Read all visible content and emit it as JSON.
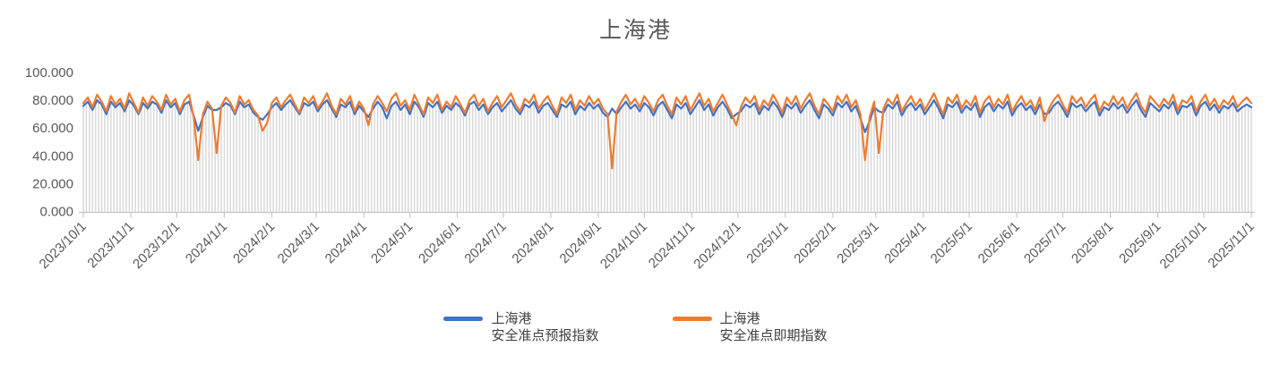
{
  "chart_data": {
    "type": "line",
    "title": "上海港",
    "legend_position": "bottom",
    "grid": "none",
    "sample_step_days": 3,
    "y_axis": {
      "min": 0,
      "max": 100,
      "tick_values": [
        0,
        20,
        40,
        60,
        80,
        100
      ],
      "tick_labels": [
        "0.000",
        "20.000",
        "40.000",
        "60.000",
        "80.000",
        "100.000"
      ]
    },
    "x_axis": {
      "tick_labels": [
        "2023/10/1",
        "2023/11/1",
        "2023/12/1",
        "2024/1/1",
        "2024/2/1",
        "2024/3/1",
        "2024/4/1",
        "2024/5/1",
        "2024/6/1",
        "2024/7/1",
        "2024/8/1",
        "2024/9/1",
        "2024/10/1",
        "2024/11/1",
        "2024/12/1",
        "2025/1/1",
        "2025/2/1",
        "2025/3/1",
        "2025/4/1",
        "2025/5/1",
        "2025/6/1",
        "2025/7/1",
        "2025/8/1",
        "2025/9/1",
        "2025/10/1",
        "2025/11/1"
      ],
      "tick_days": [
        0,
        31,
        61,
        92,
        123,
        152,
        183,
        213,
        244,
        274,
        305,
        336,
        366,
        397,
        427,
        458,
        489,
        517,
        548,
        578,
        609,
        639,
        670,
        701,
        731,
        762
      ],
      "total_days": 762
    },
    "series": [
      {
        "name_line1": "上海港",
        "name_line2": "安全准点预报指数",
        "color": "#4472C4",
        "values": [
          76,
          79,
          73,
          80,
          77,
          70,
          79,
          75,
          78,
          72,
          80,
          76,
          70,
          78,
          74,
          79,
          77,
          71,
          80,
          75,
          78,
          70,
          77,
          79,
          69,
          58,
          68,
          76,
          73,
          73,
          75,
          78,
          76,
          70,
          79,
          75,
          77,
          71,
          68,
          66,
          70,
          75,
          78,
          73,
          77,
          80,
          75,
          70,
          78,
          76,
          79,
          72,
          77,
          80,
          74,
          68,
          77,
          75,
          79,
          70,
          76,
          72,
          68,
          74,
          79,
          75,
          67,
          76,
          79,
          73,
          77,
          70,
          79,
          75,
          68,
          78,
          75,
          79,
          71,
          76,
          73,
          78,
          75,
          69,
          77,
          79,
          73,
          77,
          70,
          75,
          78,
          72,
          76,
          80,
          74,
          70,
          77,
          75,
          79,
          71,
          76,
          78,
          73,
          68,
          77,
          75,
          79,
          70,
          76,
          73,
          78,
          74,
          77,
          71,
          68,
          74,
          70,
          75,
          79,
          74,
          77,
          72,
          78,
          75,
          69,
          76,
          79,
          73,
          67,
          77,
          74,
          78,
          70,
          75,
          80,
          73,
          77,
          69,
          75,
          79,
          74,
          67,
          70,
          72,
          77,
          75,
          78,
          70,
          76,
          73,
          79,
          75,
          68,
          77,
          74,
          78,
          71,
          76,
          80,
          73,
          67,
          77,
          74,
          69,
          78,
          75,
          79,
          72,
          76,
          67,
          57,
          65,
          75,
          72,
          71,
          77,
          74,
          79,
          69,
          75,
          78,
          73,
          77,
          70,
          75,
          80,
          74,
          67,
          77,
          75,
          79,
          71,
          76,
          73,
          78,
          68,
          75,
          78,
          72,
          77,
          74,
          79,
          69,
          75,
          78,
          73,
          76,
          70,
          77,
          70,
          71,
          76,
          79,
          74,
          68,
          78,
          75,
          77,
          72,
          76,
          79,
          69,
          75,
          73,
          78,
          74,
          77,
          71,
          76,
          80,
          73,
          68,
          78,
          75,
          72,
          77,
          74,
          79,
          70,
          76,
          75,
          78,
          69,
          76,
          79,
          73,
          77,
          71,
          76,
          74,
          78,
          72,
          75,
          77,
          75
        ]
      },
      {
        "name_line1": "上海港",
        "name_line2": "安全准点即期指数",
        "color": "#ED7D31",
        "values": [
          78,
          82,
          75,
          84,
          79,
          72,
          83,
          77,
          81,
          74,
          85,
          78,
          71,
          82,
          76,
          83,
          79,
          73,
          84,
          77,
          81,
          72,
          80,
          84,
          68,
          37,
          70,
          79,
          74,
          42,
          76,
          82,
          78,
          71,
          83,
          77,
          80,
          73,
          69,
          58,
          64,
          78,
          82,
          75,
          80,
          84,
          77,
          71,
          82,
          78,
          83,
          74,
          79,
          85,
          76,
          70,
          81,
          77,
          83,
          72,
          79,
          74,
          62,
          77,
          83,
          78,
          72,
          81,
          85,
          76,
          80,
          73,
          84,
          77,
          70,
          82,
          78,
          84,
          73,
          79,
          75,
          83,
          77,
          71,
          80,
          84,
          76,
          81,
          72,
          78,
          83,
          75,
          80,
          85,
          77,
          72,
          81,
          78,
          84,
          74,
          79,
          83,
          76,
          70,
          82,
          78,
          84,
          73,
          80,
          76,
          83,
          77,
          81,
          74,
          70,
          31,
          72,
          79,
          84,
          77,
          81,
          75,
          83,
          78,
          72,
          80,
          84,
          76,
          70,
          82,
          77,
          83,
          73,
          79,
          85,
          76,
          81,
          72,
          78,
          84,
          77,
          70,
          62,
          75,
          82,
          78,
          83,
          73,
          80,
          76,
          84,
          78,
          71,
          82,
          77,
          83,
          74,
          80,
          85,
          76,
          70,
          81,
          77,
          72,
          83,
          78,
          84,
          75,
          80,
          70,
          37,
          68,
          79,
          42,
          74,
          81,
          77,
          84,
          72,
          78,
          83,
          76,
          81,
          73,
          79,
          85,
          77,
          70,
          82,
          78,
          84,
          74,
          80,
          76,
          83,
          71,
          79,
          83,
          75,
          81,
          77,
          84,
          72,
          78,
          83,
          76,
          80,
          73,
          82,
          65,
          74,
          80,
          84,
          77,
          71,
          83,
          78,
          82,
          75,
          80,
          84,
          72,
          79,
          76,
          83,
          77,
          82,
          74,
          80,
          85,
          76,
          71,
          83,
          79,
          75,
          81,
          77,
          84,
          73,
          80,
          78,
          83,
          72,
          79,
          84,
          76,
          81,
          74,
          80,
          77,
          83,
          75,
          79,
          82,
          78
        ]
      }
    ],
    "style": {
      "dropline_color": "#D9D9D9",
      "axis_color": "#C6C6C6",
      "label_color": "#595959",
      "title_color": "#595959",
      "legend_text_color": "#404040",
      "line_width": 2.2
    }
  }
}
